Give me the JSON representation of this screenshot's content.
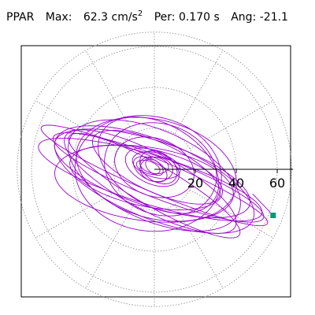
{
  "header": {
    "component": "PPAR",
    "max_label": "Max:",
    "max_value": "62.3",
    "max_unit_base": "cm/s",
    "max_unit_exp": "2",
    "per_label": "Per:",
    "per_value": "0.170 s",
    "ang_label": "Ang:",
    "ang_value": "-21.1"
  },
  "chart_data": {
    "type": "polar-orbit",
    "title": "PPAR  Max: 62.3 cm/s2  Per: 0.170 s  Ang: -21.1",
    "radial_ticks": [
      20,
      40,
      60
    ],
    "radial_max": 67,
    "spokes_deg": [
      0,
      30,
      60,
      90,
      120,
      150,
      180,
      210,
      240,
      270,
      300,
      330
    ],
    "grid": true,
    "peak_marker": {
      "x": 58,
      "y": -22.5,
      "color": "#009977"
    },
    "trace_color": "#9900cc",
    "loops": [
      {
        "semi_major": 55,
        "semi_minor": 10,
        "tilt_deg": -21,
        "cx": 2,
        "cy": -4
      },
      {
        "semi_major": 50,
        "semi_minor": 16,
        "tilt_deg": -18,
        "cx": -1,
        "cy": -2
      },
      {
        "semi_major": 45,
        "semi_minor": 22,
        "tilt_deg": -24,
        "cx": 0,
        "cy": -3
      },
      {
        "semi_major": 40,
        "semi_minor": 24,
        "tilt_deg": -15,
        "cx": 1,
        "cy": 0
      },
      {
        "semi_major": 47,
        "semi_minor": 14,
        "tilt_deg": -28,
        "cx": -2,
        "cy": -6
      },
      {
        "semi_major": 36,
        "semi_minor": 28,
        "tilt_deg": -10,
        "cx": -3,
        "cy": -2
      },
      {
        "semi_major": 52,
        "semi_minor": 19,
        "tilt_deg": -22,
        "cx": 0,
        "cy": -5
      },
      {
        "semi_major": 32,
        "semi_minor": 20,
        "tilt_deg": -30,
        "cx": 2,
        "cy": 2
      },
      {
        "semi_major": 38,
        "semi_minor": 14,
        "tilt_deg": -12,
        "cx": -4,
        "cy": -4
      },
      {
        "semi_major": 28,
        "semi_minor": 22,
        "tilt_deg": -20,
        "cx": 3,
        "cy": 0
      },
      {
        "semi_major": 44,
        "semi_minor": 18,
        "tilt_deg": -8,
        "cx": -5,
        "cy": -7
      },
      {
        "semi_major": 34,
        "semi_minor": 12,
        "tilt_deg": -25,
        "cx": 1,
        "cy": 1
      },
      {
        "semi_major": 60,
        "semi_minor": 8,
        "tilt_deg": -23,
        "cx": 0,
        "cy": -3
      },
      {
        "semi_major": 57,
        "semi_minor": 12,
        "tilt_deg": -17,
        "cx": -2,
        "cy": -5
      },
      {
        "semi_major": 48,
        "semi_minor": 10,
        "tilt_deg": -30,
        "cx": 0,
        "cy": -8
      },
      {
        "semi_major": 20,
        "semi_minor": 14,
        "tilt_deg": -20,
        "cx": 0,
        "cy": 1
      },
      {
        "semi_major": 14,
        "semi_minor": 8,
        "tilt_deg": -25,
        "cx": -1,
        "cy": 1
      },
      {
        "semi_major": 12,
        "semi_minor": 6,
        "tilt_deg": -15,
        "cx": 1,
        "cy": 2
      },
      {
        "semi_major": 9,
        "semi_minor": 5,
        "tilt_deg": -30,
        "cx": -2,
        "cy": 0
      },
      {
        "semi_major": 7,
        "semi_minor": 4,
        "tilt_deg": -10,
        "cx": 0,
        "cy": 2
      },
      {
        "semi_major": 10,
        "semi_minor": 7,
        "tilt_deg": -35,
        "cx": 2,
        "cy": 1
      },
      {
        "semi_major": 6,
        "semi_minor": 3,
        "tilt_deg": -20,
        "cx": -3,
        "cy": 1
      },
      {
        "semi_major": 8,
        "semi_minor": 6,
        "tilt_deg": -5,
        "cx": 1,
        "cy": 0
      },
      {
        "semi_major": 5,
        "semi_minor": 3,
        "tilt_deg": -40,
        "cx": 0,
        "cy": 1
      }
    ]
  }
}
